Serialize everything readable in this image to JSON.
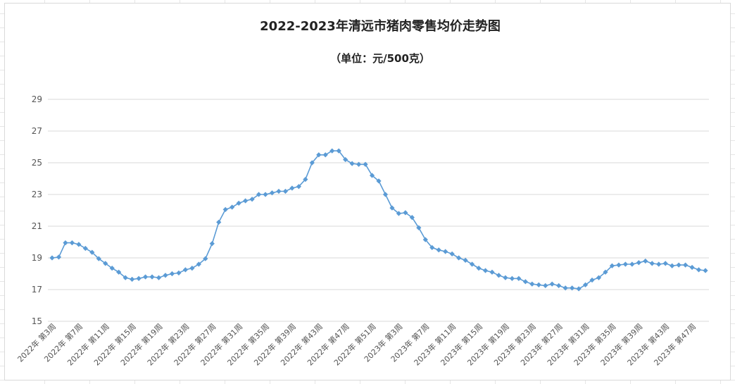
{
  "chart_data": {
    "type": "line",
    "title": "2022-2023年清远市猪肉零售均价走势图",
    "subtitle": "（单位：元/500克）",
    "xlabel": "",
    "ylabel": "",
    "ylim": [
      15,
      29
    ],
    "yticks": [
      15,
      17,
      19,
      21,
      23,
      25,
      27,
      29
    ],
    "grid": true,
    "x_tick_labels": [
      "2022年 第3周",
      "2022年 第7周",
      "2022年 第11周",
      "2022年 第15周",
      "2022年 第19周",
      "2022年 第23周",
      "2022年 第27周",
      "2022年 第31周",
      "2022年 第35周",
      "2022年 第39周",
      "2022年 第43周",
      "2022年 第47周",
      "2022年 第51周",
      "2023年 第3周",
      "2023年 第7周",
      "2023年 第11周",
      "2023年 第15周",
      "2023年 第19周",
      "2023年 第23周",
      "2023年 第27周",
      "2023年 第31周",
      "2023年 第35周",
      "2023年 第39周",
      "2023年 第43周",
      "2023年 第47周"
    ],
    "series": [
      {
        "color": "#5b9bd5",
        "values": [
          19.0,
          19.05,
          19.95,
          19.95,
          19.85,
          19.6,
          19.35,
          18.95,
          18.65,
          18.35,
          18.1,
          17.75,
          17.65,
          17.7,
          17.8,
          17.8,
          17.75,
          17.9,
          18.0,
          18.05,
          18.25,
          18.35,
          18.6,
          18.95,
          19.9,
          21.25,
          22.05,
          22.2,
          22.45,
          22.6,
          22.7,
          23.0,
          23.0,
          23.1,
          23.2,
          23.2,
          23.4,
          23.5,
          23.95,
          25.0,
          25.5,
          25.5,
          25.75,
          25.75,
          25.2,
          24.95,
          24.9,
          24.9,
          24.2,
          23.85,
          23.0,
          22.15,
          21.8,
          21.85,
          21.55,
          20.9,
          20.15,
          19.65,
          19.5,
          19.4,
          19.25,
          19.0,
          18.85,
          18.6,
          18.35,
          18.2,
          18.1,
          17.9,
          17.75,
          17.7,
          17.7,
          17.5,
          17.35,
          17.3,
          17.25,
          17.35,
          17.25,
          17.1,
          17.1,
          17.05,
          17.3,
          17.6,
          17.75,
          18.1,
          18.5,
          18.55,
          18.6,
          18.6,
          18.7,
          18.8,
          18.65,
          18.6,
          18.65,
          18.5,
          18.55,
          18.55,
          18.4,
          18.25,
          18.2
        ]
      }
    ]
  }
}
